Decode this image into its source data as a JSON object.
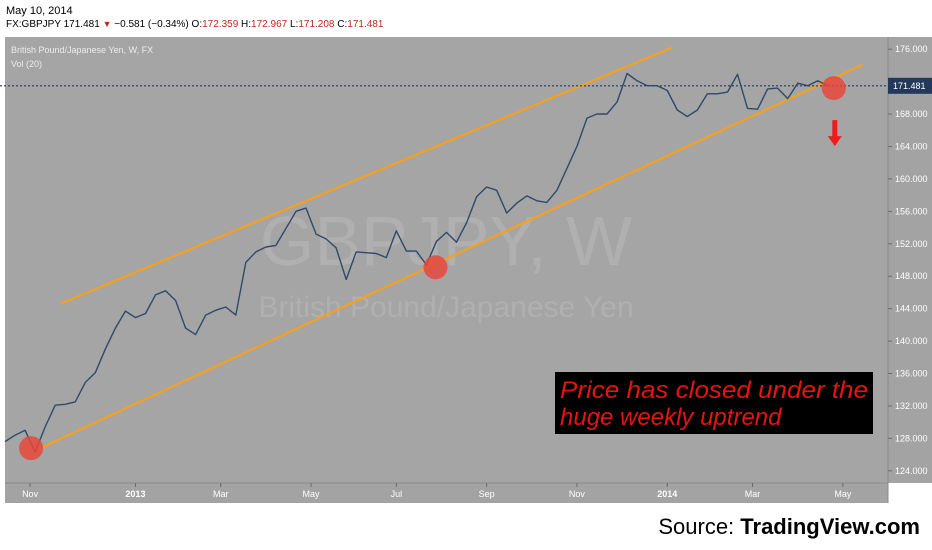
{
  "header": {
    "date": "May 10, 2014",
    "symbol": "FX:GBPJPY",
    "last": "171.481",
    "change": "−0.581 (−0.34%)",
    "open_label": "O:",
    "open": "172.359",
    "high_label": "H:",
    "high": "172.967",
    "low_label": "L:",
    "low": "171.208",
    "close_label": "C:",
    "close": "171.481"
  },
  "chart_info": {
    "title": "British Pound/Japanese Yen, W, FX",
    "indicator": "Vol (20)",
    "watermark_symbol": "GBPJPY, W",
    "watermark_name": "British Pound/Japanese Yen",
    "price_tag": "171.481"
  },
  "annotation": {
    "line1": "Price has closed under the",
    "line2": " huge weekly uptrend"
  },
  "source": {
    "prefix": "Source: ",
    "brand": "TradingView.com"
  },
  "colors": {
    "plot_bg": "#a5a5a5",
    "price_line": "#2f4a6a",
    "channel": "#f5a020",
    "marker": "#e8463c",
    "arrow": "#ee1c1c",
    "price_tag_bg": "#23395b",
    "annotation_bg": "#000000",
    "annotation_text": "#e3150d"
  },
  "chart_data": {
    "type": "line",
    "title": "British Pound/Japanese Yen, W, FX",
    "xlabel": "",
    "ylabel": "",
    "ylim": [
      122.5,
      177.5
    ],
    "yticks": [
      124,
      128,
      132,
      136,
      140,
      144,
      148,
      152,
      156,
      160,
      164,
      168,
      172,
      176
    ],
    "ytick_labels": [
      "124.000",
      "128.000",
      "132.000",
      "136.000",
      "140.000",
      "144.000",
      "148.000",
      "152.000",
      "156.000",
      "160.000",
      "164.000",
      "168.000",
      "172.000",
      "176.000"
    ],
    "xtick_labels": [
      {
        "label": "Nov",
        "week": 2.5
      },
      {
        "label": "2013",
        "week": 13
      },
      {
        "label": "Mar",
        "week": 21.5
      },
      {
        "label": "May",
        "week": 30.5
      },
      {
        "label": "Jul",
        "week": 39
      },
      {
        "label": "Sep",
        "week": 48
      },
      {
        "label": "Nov",
        "week": 57
      },
      {
        "label": "2014",
        "week": 66
      },
      {
        "label": "Mar",
        "week": 74.5
      },
      {
        "label": "May",
        "week": 83.5
      }
    ],
    "series": [
      {
        "values": [
          127.6,
          128.4,
          129.0,
          126.3,
          129.4,
          132.1,
          132.2,
          132.5,
          134.9,
          136.1,
          139.0,
          141.6,
          143.7,
          142.9,
          143.4,
          145.7,
          146.2,
          145.0,
          141.6,
          140.8,
          143.2,
          143.8,
          144.2,
          143.2,
          149.7,
          151.0,
          151.6,
          151.8,
          153.9,
          156.0,
          156.4,
          153.2,
          152.6,
          151.5,
          147.6,
          151.0,
          150.9,
          150.8,
          150.3,
          153.6,
          151.1,
          151.1,
          149.4,
          152.3,
          153.4,
          152.2,
          154.6,
          157.8,
          159.0,
          158.6,
          155.8,
          157.0,
          157.9,
          157.3,
          157.1,
          158.6,
          161.3,
          164.0,
          167.5,
          168.0,
          168.0,
          169.5,
          173.0,
          172.1,
          171.5,
          171.5,
          170.9,
          168.5,
          167.7,
          168.5,
          170.5,
          170.5,
          170.7,
          172.9,
          168.7,
          168.6,
          171.1,
          171.2,
          169.9,
          171.8,
          171.5,
          172.1,
          171.5
        ]
      }
    ],
    "channels": [
      {
        "name": "upper",
        "x": [
          5.5,
          66.5
        ],
        "y": [
          144.6,
          176.2
        ]
      },
      {
        "name": "lower",
        "x": [
          2.5,
          85.5
        ],
        "y": [
          126.2,
          174.1
        ]
      }
    ],
    "highlight_points": [
      {
        "week": 2.6,
        "value": 126.8
      },
      {
        "week": 42.9,
        "value": 149.1
      },
      {
        "week": 82.6,
        "value": 171.2
      }
    ],
    "current_price": 171.481,
    "x_domain": [
      0,
      88
    ]
  }
}
